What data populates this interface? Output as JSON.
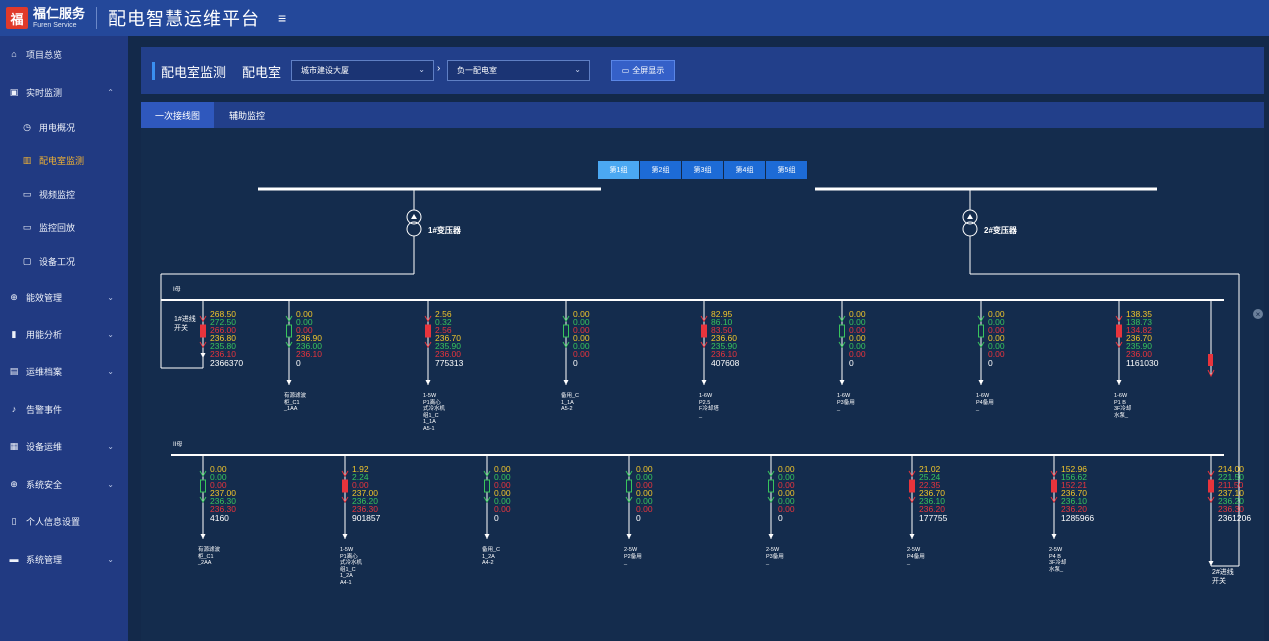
{
  "header": {
    "logo_text": "福仁服务",
    "logo_sub": "Furen Service",
    "app_title": "配电智慧运维平台"
  },
  "sidebar": {
    "items": [
      {
        "label": "项目总览",
        "icon": "home-icon"
      },
      {
        "label": "实时监测",
        "icon": "monitor-icon",
        "chev": "⌃"
      },
      {
        "label": "用电概况",
        "icon": "clock-icon"
      },
      {
        "label": "配电室监测",
        "icon": "building-icon"
      },
      {
        "label": "视频监控",
        "icon": "video-icon"
      },
      {
        "label": "监控回放",
        "icon": "playback-icon"
      },
      {
        "label": "设备工况",
        "icon": "device-icon"
      },
      {
        "label": "能效管理",
        "icon": "plus-circle-icon",
        "chev": "⌄"
      },
      {
        "label": "用能分析",
        "icon": "bar-chart-icon",
        "chev": "⌄"
      },
      {
        "label": "运维档案",
        "icon": "archive-icon",
        "chev": "⌄"
      },
      {
        "label": "告警事件",
        "icon": "bell-icon"
      },
      {
        "label": "设备运维",
        "icon": "clipboard-icon",
        "chev": "⌄"
      },
      {
        "label": "系统安全",
        "icon": "plus-circle-icon",
        "chev": "⌄"
      },
      {
        "label": "个人信息设置",
        "icon": "bookmark-icon"
      },
      {
        "label": "系统管理",
        "icon": "desktop-icon",
        "chev": "⌄"
      }
    ]
  },
  "filter": {
    "title": "配电室监测",
    "room_label": "配电室",
    "building": "城市建设大厦",
    "room": "负一配电室",
    "fullscreen": "全屏显示"
  },
  "tabs": [
    {
      "label": "一次接线图"
    },
    {
      "label": "辅助监控"
    }
  ],
  "groups": [
    "第1组",
    "第2组",
    "第3组",
    "第4组",
    "第5组"
  ],
  "transformers": [
    "1#变压器",
    "2#变压器"
  ],
  "buses": {
    "upper": "I母",
    "lower": "II母"
  },
  "feeders_top": [
    {
      "v": [
        "268.50",
        "272.50",
        "266.00",
        "236.80",
        "235.80",
        "236.10"
      ],
      "e": "2366370",
      "name": "1#进线\n开关"
    },
    {
      "v": [
        "0.00",
        "0.00",
        "0.00",
        "236.90",
        "236.00",
        "236.10"
      ],
      "e": "0",
      "name": "有源滤波\n柜_C1\n_1AA\n"
    },
    {
      "v": [
        "2.56",
        "0.32",
        "2.56",
        "236.70",
        "235.90",
        "236.00"
      ],
      "e": "775313",
      "name": "1-5W\nP1离心\n式冷水机\n组1_C\n1_1A\nA5-1"
    },
    {
      "v": [
        "0.00",
        "0.00",
        "0.00",
        "0.00",
        "0.00",
        "0.00"
      ],
      "e": "0",
      "name": "备用_C\n1_1A\nA5-2"
    },
    {
      "v": [
        "82.95",
        "86.10",
        "83.50",
        "236.60",
        "235.90",
        "236.10"
      ],
      "e": "407608",
      "name": "1-6W\nP2.5\nF冷却塔\n_"
    },
    {
      "v": [
        "0.00",
        "0.00",
        "0.00",
        "0.00",
        "0.00",
        "0.00"
      ],
      "e": "0",
      "name": "1-6W\nP3备用\n_"
    },
    {
      "v": [
        "0.00",
        "0.00",
        "0.00",
        "0.00",
        "0.00",
        "0.00"
      ],
      "e": "0",
      "name": "1-6W\nP4备用\n_"
    },
    {
      "v": [
        "138.35",
        "138.73",
        "134.82",
        "236.70",
        "235.90",
        "236.00"
      ],
      "e": "1161030",
      "name": "1-6W\nP1 B\n3F冷却\n水泵_"
    }
  ],
  "feeders_bottom": [
    {
      "v": [
        "0.00",
        "0.00",
        "0.00",
        "237.00",
        "236.30",
        "236.30"
      ],
      "e": "4160",
      "name": "有源滤波\n柜_C1\n_2AA\n"
    },
    {
      "v": [
        "1.92",
        "2.24",
        "0.00",
        "237.00",
        "236.20",
        "236.30"
      ],
      "e": "901857",
      "name": "1-5W\nP1离心\n式冷水机\n组1_C\n1_2A\nA4-1"
    },
    {
      "v": [
        "0.00",
        "0.00",
        "0.00",
        "0.00",
        "0.00",
        "0.00"
      ],
      "e": "0",
      "name": "备用_C\n1_2A\nA4-2"
    },
    {
      "v": [
        "0.00",
        "0.00",
        "0.00",
        "0.00",
        "0.00",
        "0.00"
      ],
      "e": "0",
      "name": "2-5W\nP2备用\n_"
    },
    {
      "v": [
        "0.00",
        "0.00",
        "0.00",
        "0.00",
        "0.00",
        "0.00"
      ],
      "e": "0",
      "name": "2-5W\nP3备用\n_"
    },
    {
      "v": [
        "21.02",
        "25.24",
        "22.35",
        "236.70",
        "236.10",
        "236.20"
      ],
      "e": "177755",
      "name": "2-5W\nP4备用\n_"
    },
    {
      "v": [
        "152.96",
        "156.62",
        "152.21",
        "236.70",
        "236.10",
        "236.20"
      ],
      "e": "1285966",
      "name": "2-5W\nP4 B\n3F冷却\n水泵_"
    },
    {
      "v": [
        "214.00",
        "221.50",
        "211.50",
        "237.10",
        "236.20",
        "236.30"
      ],
      "e": "2361206",
      "name": "2#进线\n开关"
    }
  ],
  "colors": {
    "accent": "#3a8ff0",
    "active_nav": "#f1b233",
    "val_yellow": "#f2c62a",
    "val_green": "#38c45c",
    "val_red": "#e8343c"
  }
}
